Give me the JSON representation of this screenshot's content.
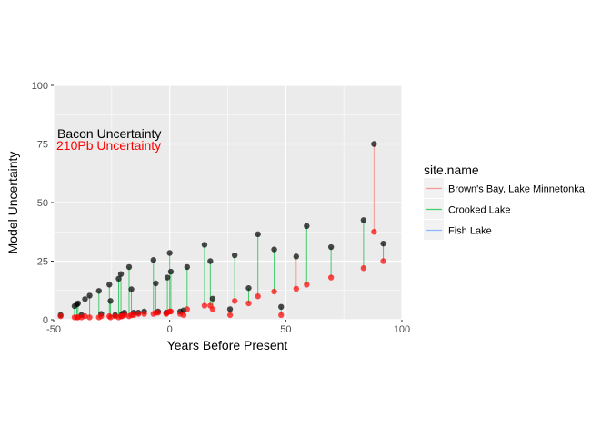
{
  "chart_data": {
    "type": "scatter",
    "title": "",
    "xlabel": "Years Before Present",
    "ylabel": "Model Uncertainty",
    "xlim": [
      -50,
      100
    ],
    "ylim": [
      0,
      100
    ],
    "x_ticks": [
      "-50",
      "0",
      "50",
      "100"
    ],
    "y_ticks": [
      "0",
      "25",
      "50",
      "75",
      "100"
    ],
    "grid": true,
    "annotations": [
      {
        "text": "Bacon Uncertainty",
        "color": "#000000"
      },
      {
        "text": "210Pb Uncertainty",
        "color": "#ff0000"
      }
    ],
    "legend": {
      "title": "site.name",
      "position": "right",
      "items": [
        {
          "label": "Brown's Bay, Lake Minnetonka",
          "color": "#f8766d"
        },
        {
          "label": "Crooked Lake",
          "color": "#00ba38"
        },
        {
          "label": "Fish Lake",
          "color": "#619cff"
        }
      ]
    },
    "series": [
      {
        "site": "Brown's Bay, Lake Minnetonka",
        "color": "#f8766d",
        "points": [
          {
            "x": 54.5,
            "bacon": 27.0,
            "pb210": 13.2
          },
          {
            "x": 88.0,
            "bacon": 75.0,
            "pb210": 37.5
          }
        ]
      },
      {
        "site": "Crooked Lake",
        "color": "#00ba38",
        "points": [
          {
            "x": -47.0,
            "bacon": 2.0,
            "pb210": 1.5
          },
          {
            "x": -41.0,
            "bacon": 5.8,
            "pb210": 1.0
          },
          {
            "x": -40.0,
            "bacon": 6.5,
            "pb210": 1.0
          },
          {
            "x": -39.5,
            "bacon": 7.0,
            "pb210": 1.0
          },
          {
            "x": -38.0,
            "bacon": 2.0,
            "pb210": 1.0
          },
          {
            "x": -36.5,
            "bacon": 8.8,
            "pb210": 1.5
          },
          {
            "x": -34.5,
            "bacon": 10.3,
            "pb210": 1.0
          },
          {
            "x": -30.5,
            "bacon": 12.3,
            "pb210": 1.0
          },
          {
            "x": -29.5,
            "bacon": 2.5,
            "pb210": 1.5
          },
          {
            "x": -26.0,
            "bacon": 15.0,
            "pb210": 1.5
          },
          {
            "x": -25.5,
            "bacon": 8.0,
            "pb210": 1.0
          },
          {
            "x": -23.5,
            "bacon": 2.0,
            "pb210": 1.5
          },
          {
            "x": -22.0,
            "bacon": 17.5,
            "pb210": 1.0
          },
          {
            "x": -21.0,
            "bacon": 19.5,
            "pb210": 1.5
          },
          {
            "x": -20.5,
            "bacon": 2.5,
            "pb210": 1.5
          },
          {
            "x": -19.5,
            "bacon": 3.0,
            "pb210": 2.0
          },
          {
            "x": -17.5,
            "bacon": 22.5,
            "pb210": 1.5
          },
          {
            "x": -16.5,
            "bacon": 13.0,
            "pb210": 2.0
          },
          {
            "x": -15.5,
            "bacon": 3.0,
            "pb210": 2.0
          },
          {
            "x": -13.5,
            "bacon": 3.0,
            "pb210": 2.5
          },
          {
            "x": -11.0,
            "bacon": 3.5,
            "pb210": 2.5
          },
          {
            "x": -7.0,
            "bacon": 25.5,
            "pb210": 2.5
          },
          {
            "x": -6.0,
            "bacon": 15.5,
            "pb210": 3.0
          },
          {
            "x": -5.0,
            "bacon": 3.5,
            "pb210": 3.0
          },
          {
            "x": -1.5,
            "bacon": 3.0,
            "pb210": 2.5
          },
          {
            "x": -1.0,
            "bacon": 18.0,
            "pb210": 3.0
          },
          {
            "x": 0.0,
            "bacon": 28.5,
            "pb210": 3.5
          },
          {
            "x": 0.5,
            "bacon": 20.5,
            "pb210": 3.5
          },
          {
            "x": 4.5,
            "bacon": 3.5,
            "pb210": 2.5
          },
          {
            "x": 6.0,
            "bacon": 4.0,
            "pb210": 2.0
          },
          {
            "x": 7.5,
            "bacon": 22.5,
            "pb210": 4.5
          },
          {
            "x": 15.0,
            "bacon": 32.0,
            "pb210": 6.0
          },
          {
            "x": 17.5,
            "bacon": 25.0,
            "pb210": 6.0
          },
          {
            "x": 18.5,
            "bacon": 9.0,
            "pb210": 4.5
          },
          {
            "x": 26.0,
            "bacon": 4.5,
            "pb210": 2.0
          },
          {
            "x": 28.0,
            "bacon": 27.5,
            "pb210": 8.0
          },
          {
            "x": 34.0,
            "bacon": 13.5,
            "pb210": 7.0
          },
          {
            "x": 38.0,
            "bacon": 36.5,
            "pb210": 10.0
          },
          {
            "x": 45.0,
            "bacon": 30.0,
            "pb210": 12.0
          },
          {
            "x": 48.0,
            "bacon": 5.5,
            "pb210": 2.0
          },
          {
            "x": 59.0,
            "bacon": 40.0,
            "pb210": 15.0
          },
          {
            "x": 69.5,
            "bacon": 31.0,
            "pb210": 18.0
          },
          {
            "x": 83.5,
            "bacon": 42.5,
            "pb210": 22.0
          },
          {
            "x": 92.0,
            "bacon": 32.5,
            "pb210": 25.0
          }
        ]
      },
      {
        "site": "Fish Lake",
        "color": "#619cff",
        "points": []
      }
    ]
  }
}
